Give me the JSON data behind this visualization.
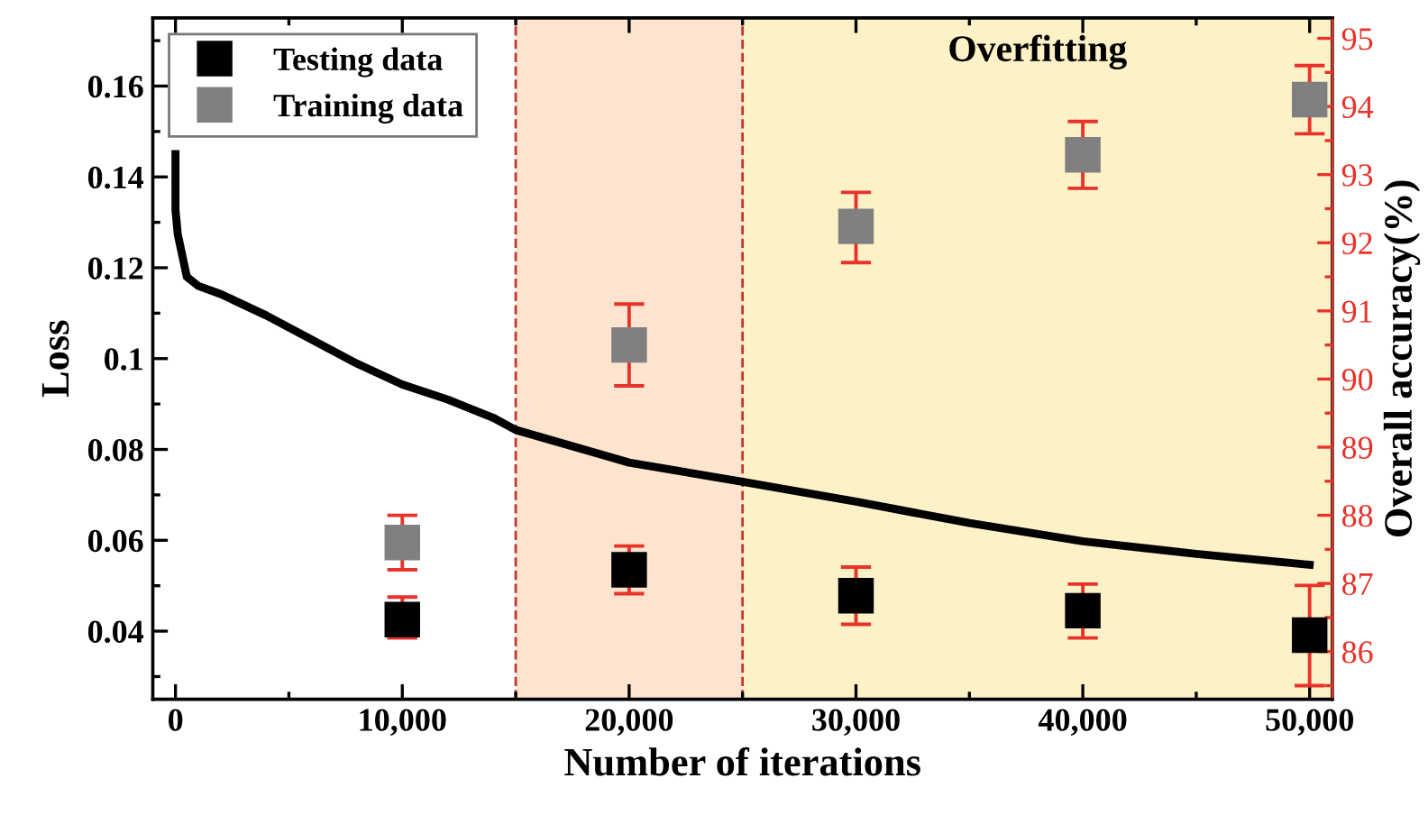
{
  "chart_data": {
    "type": "line",
    "xlabel": "Number of iterations",
    "ylabel": "Loss",
    "y2label": "Overall accuracy(%)",
    "xlim": [
      -1000,
      51000
    ],
    "xticks": [
      0,
      {
        "value": 10000,
        "label": "10,000"
      },
      {
        "value": 20000,
        "label": "20,000"
      },
      {
        "value": 30000,
        "label": "30,000"
      },
      {
        "value": 40000,
        "label": "40,000"
      },
      {
        "value": 50000,
        "label": "50,000"
      }
    ],
    "ylim": [
      0.025,
      0.175
    ],
    "yticks": [
      0.04,
      0.06,
      0.08,
      0.1,
      0.12,
      0.14,
      0.16
    ],
    "y2lim": [
      85.3,
      95.3
    ],
    "y2ticks": [
      86,
      87,
      88,
      89,
      90,
      91,
      92,
      93,
      94,
      95
    ],
    "grid": false,
    "legend": "top left",
    "bands": [
      {
        "axis": "x",
        "from": 15000,
        "to": 25000,
        "color": "#fde4cf"
      },
      {
        "axis": "x",
        "from": 25000,
        "to": 51000,
        "label": "Overfitting",
        "color": "#fdf1c8"
      }
    ],
    "ref_lines": [
      {
        "axis": "x",
        "value": 15000,
        "color": "#c0392b",
        "line_style": "dashed"
      },
      {
        "axis": "x",
        "value": 25000,
        "color": "#c0392b",
        "line_style": "dashed"
      }
    ],
    "series": [
      {
        "color": "#000000",
        "x": [
          0,
          0,
          100,
          500,
          1000,
          2000,
          4000,
          6000,
          8000,
          10000,
          12000,
          14000,
          15000,
          20000,
          25000,
          30000,
          35000,
          40000,
          45000,
          50000
        ],
        "values": [
          0.145,
          0.1327,
          0.1274,
          0.118,
          0.116,
          0.1142,
          0.1095,
          0.1042,
          0.0989,
          0.0943,
          0.091,
          0.087,
          0.0843,
          0.0771,
          0.0729,
          0.0685,
          0.0638,
          0.0598,
          0.057,
          0.0546
        ]
      },
      {
        "type": "scatter",
        "name": "Testing data",
        "axis": "y2",
        "color": "#000000",
        "marker": "square",
        "x": [
          10000,
          20000,
          30000,
          40000,
          50000
        ],
        "values": [
          86.47,
          87.2,
          86.82,
          86.6,
          86.24
        ],
        "errors": [
          [
            86.2,
            86.8
          ],
          [
            86.85,
            87.55
          ],
          [
            86.4,
            87.24
          ],
          [
            86.2,
            86.99
          ],
          [
            85.5,
            86.97
          ]
        ]
      },
      {
        "type": "scatter",
        "name": "Training data",
        "axis": "y2",
        "color": "#808080",
        "marker": "square",
        "x": [
          10000,
          20000,
          30000,
          40000,
          50000
        ],
        "values": [
          87.6,
          90.5,
          92.24,
          93.29,
          94.1
        ],
        "errors": [
          [
            87.2,
            88.0
          ],
          [
            89.9,
            91.1
          ],
          [
            91.71,
            92.74
          ],
          [
            92.8,
            93.78
          ],
          [
            93.6,
            94.6
          ]
        ]
      }
    ]
  }
}
